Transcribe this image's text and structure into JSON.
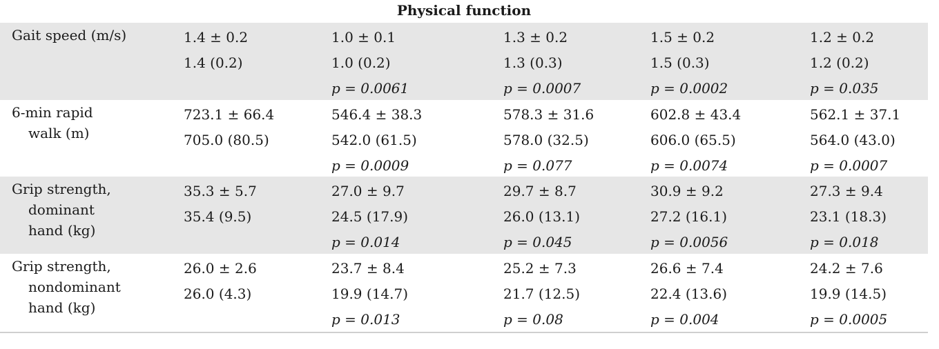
{
  "section_title": "Physical function",
  "rows": [
    {
      "label_lines": [
        "Gait speed (m/s)"
      ],
      "cells": [
        {
          "mean_sd": "1.4 ± 0.2",
          "median_iqr": "1.4 (0.2)",
          "p": ""
        },
        {
          "mean_sd": "1.0 ± 0.1",
          "median_iqr": "1.0 (0.2)",
          "p": "p = 0.0061"
        },
        {
          "mean_sd": "1.3 ± 0.2",
          "median_iqr": "1.3 (0.3)",
          "p": "p = 0.0007"
        },
        {
          "mean_sd": "1.5 ± 0.2",
          "median_iqr": "1.5 (0.3)",
          "p": "p = 0.0002"
        },
        {
          "mean_sd": "1.2 ± 0.2",
          "median_iqr": "1.2 (0.2)",
          "p": "p = 0.035"
        }
      ]
    },
    {
      "label_lines": [
        "6-min rapid",
        "walk (m)"
      ],
      "cells": [
        {
          "mean_sd": "723.1 ± 66.4",
          "median_iqr": "705.0 (80.5)",
          "p": ""
        },
        {
          "mean_sd": "546.4 ± 38.3",
          "median_iqr": "542.0 (61.5)",
          "p": "p = 0.0009"
        },
        {
          "mean_sd": "578.3 ± 31.6",
          "median_iqr": "578.0 (32.5)",
          "p": "p = 0.077"
        },
        {
          "mean_sd": "602.8 ± 43.4",
          "median_iqr": "606.0 (65.5)",
          "p": "p = 0.0074"
        },
        {
          "mean_sd": "562.1 ± 37.1",
          "median_iqr": "564.0 (43.0)",
          "p": "p = 0.0007"
        }
      ]
    },
    {
      "label_lines": [
        "Grip strength,",
        "dominant",
        "hand (kg)"
      ],
      "cells": [
        {
          "mean_sd": "35.3 ± 5.7",
          "median_iqr": "35.4 (9.5)",
          "p": ""
        },
        {
          "mean_sd": "27.0 ± 9.7",
          "median_iqr": "24.5 (17.9)",
          "p": "p = 0.014"
        },
        {
          "mean_sd": "29.7 ± 8.7",
          "median_iqr": "26.0 (13.1)",
          "p": "p = 0.045"
        },
        {
          "mean_sd": "30.9 ± 9.2",
          "median_iqr": "27.2 (16.1)",
          "p": "p = 0.0056"
        },
        {
          "mean_sd": "27.3 ± 9.4",
          "median_iqr": "23.1 (18.3)",
          "p": "p = 0.018"
        }
      ]
    },
    {
      "label_lines": [
        "Grip strength,",
        "nondominant",
        "hand (kg)"
      ],
      "cells": [
        {
          "mean_sd": "26.0 ± 2.6",
          "median_iqr": "26.0 (4.3)",
          "p": ""
        },
        {
          "mean_sd": "23.7 ± 8.4",
          "median_iqr": "19.9 (14.7)",
          "p": "p = 0.013"
        },
        {
          "mean_sd": "25.2 ± 7.3",
          "median_iqr": "21.7 (12.5)",
          "p": "p = 0.08"
        },
        {
          "mean_sd": "26.6 ± 7.4",
          "median_iqr": "22.4 (13.6)",
          "p": "p = 0.004"
        },
        {
          "mean_sd": "24.2 ± 7.6",
          "median_iqr": "19.9 (14.5)",
          "p": "p = 0.0005"
        }
      ]
    }
  ]
}
